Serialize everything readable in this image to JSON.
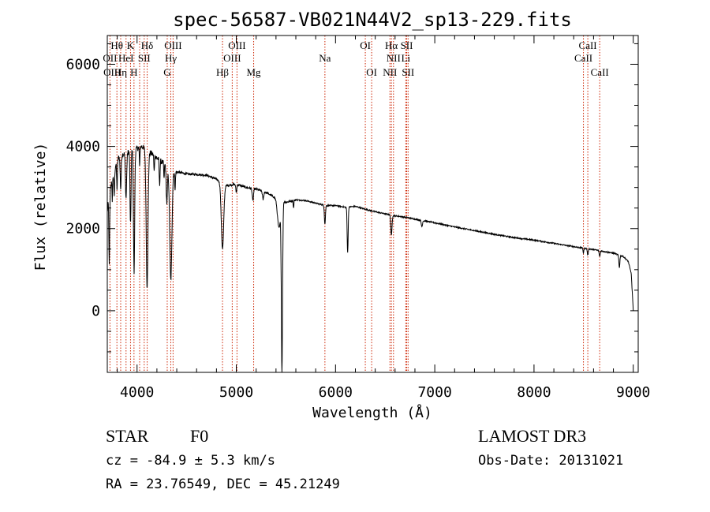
{
  "chart_data": {
    "type": "line",
    "title": "spec-56587-VB021N44V2_sp13-229.fits",
    "xlabel": "Wavelength (Å)",
    "ylabel": "Flux (relative)",
    "xlim": [
      3700,
      9050
    ],
    "ylim": [
      -1500,
      6700
    ],
    "x_ticks": [
      4000,
      5000,
      6000,
      7000,
      8000,
      9000
    ],
    "x_tick_labels": [
      "4000",
      "5000",
      "6000",
      "7000",
      "8000",
      "9000"
    ],
    "y_ticks": [
      0,
      2000,
      4000,
      6000
    ],
    "y_tick_labels": [
      "0",
      "2000",
      "4000",
      "6000"
    ],
    "series": [
      {
        "name": "spectrum",
        "color": "#000000",
        "continuum": [
          [
            3700,
            2400
          ],
          [
            3720,
            2900
          ],
          [
            3760,
            3300
          ],
          [
            3800,
            3700
          ],
          [
            3850,
            3800
          ],
          [
            3900,
            3850
          ],
          [
            3950,
            3900
          ],
          [
            4000,
            3950
          ],
          [
            4050,
            4000
          ],
          [
            4100,
            3900
          ],
          [
            4150,
            3820
          ],
          [
            4200,
            3720
          ],
          [
            4250,
            3620
          ],
          [
            4300,
            3520
          ],
          [
            4350,
            3420
          ],
          [
            4400,
            3380
          ],
          [
            4500,
            3330
          ],
          [
            4600,
            3320
          ],
          [
            4700,
            3300
          ],
          [
            4800,
            3200
          ],
          [
            4900,
            3050
          ],
          [
            5000,
            3080
          ],
          [
            5100,
            3000
          ],
          [
            5200,
            2960
          ],
          [
            5300,
            2880
          ],
          [
            5400,
            2740
          ],
          [
            5500,
            2640
          ],
          [
            5600,
            2700
          ],
          [
            5700,
            2680
          ],
          [
            5800,
            2620
          ],
          [
            5900,
            2560
          ],
          [
            6000,
            2560
          ],
          [
            6100,
            2520
          ],
          [
            6200,
            2540
          ],
          [
            6300,
            2470
          ],
          [
            6400,
            2410
          ],
          [
            6500,
            2360
          ],
          [
            6600,
            2310
          ],
          [
            6700,
            2280
          ],
          [
            6800,
            2230
          ],
          [
            7000,
            2140
          ],
          [
            7200,
            2040
          ],
          [
            7400,
            1950
          ],
          [
            7600,
            1860
          ],
          [
            7800,
            1780
          ],
          [
            8000,
            1720
          ],
          [
            8200,
            1640
          ],
          [
            8400,
            1560
          ],
          [
            8600,
            1490
          ],
          [
            8800,
            1400
          ],
          [
            8900,
            1320
          ],
          [
            8950,
            1200
          ],
          [
            8980,
            900
          ],
          [
            9000,
            0
          ]
        ],
        "absorption_lines": [
          [
            3720,
            1800,
            4
          ],
          [
            3750,
            500,
            3
          ],
          [
            3770,
            600,
            4
          ],
          [
            3798,
            700,
            4
          ],
          [
            3835,
            800,
            5
          ],
          [
            3889,
            1100,
            6
          ],
          [
            3934,
            1800,
            5
          ],
          [
            3970,
            3000,
            6
          ],
          [
            4026,
            500,
            3
          ],
          [
            4101,
            3300,
            9
          ],
          [
            4172,
            400,
            3
          ],
          [
            4227,
            600,
            4
          ],
          [
            4272,
            400,
            3
          ],
          [
            4300,
            900,
            6
          ],
          [
            4340,
            2700,
            11
          ],
          [
            4383,
            400,
            4
          ],
          [
            4861,
            1600,
            12
          ],
          [
            5000,
            200,
            5
          ],
          [
            5167,
            300,
            6
          ],
          [
            5270,
            200,
            6
          ],
          [
            5460,
            4100,
            6
          ],
          [
            5430,
            700,
            15
          ],
          [
            5577,
            200,
            3
          ],
          [
            5890,
            300,
            4
          ],
          [
            5896,
            300,
            4
          ],
          [
            6122,
            1100,
            5
          ],
          [
            6563,
            500,
            6
          ],
          [
            6870,
            150,
            6
          ],
          [
            8498,
            120,
            4
          ],
          [
            8542,
            150,
            5
          ],
          [
            8662,
            140,
            5
          ],
          [
            8860,
            300,
            5
          ]
        ]
      }
    ],
    "vertical_markers": {
      "color": "#cc2200",
      "style": "dotted",
      "wavelengths": [
        3727,
        3797,
        3835,
        3889,
        3934,
        3969,
        4026,
        4072,
        4102,
        4304,
        4340,
        4363,
        4861,
        4959,
        5007,
        5175,
        5893,
        6300,
        6364,
        6548,
        6563,
        6584,
        6708,
        6717,
        6731,
        8498,
        8542,
        8662
      ]
    },
    "line_labels": [
      {
        "text": "Hθ",
        "wave": 3797,
        "row": 1
      },
      {
        "text": "K",
        "wave": 3934,
        "row": 1
      },
      {
        "text": "Hδ",
        "wave": 4102,
        "row": 1
      },
      {
        "text": "OIII",
        "wave": 4363,
        "row": 1
      },
      {
        "text": "OIII",
        "wave": 5007,
        "row": 1
      },
      {
        "text": "OI",
        "wave": 6300,
        "row": 1
      },
      {
        "text": "Hα",
        "wave": 6563,
        "row": 1
      },
      {
        "text": "SII",
        "wave": 6717,
        "row": 1
      },
      {
        "text": "CaII",
        "wave": 8542,
        "row": 1
      },
      {
        "text": "OII",
        "wave": 3727,
        "row": 2
      },
      {
        "text": "HeI",
        "wave": 3889,
        "row": 2
      },
      {
        "text": "SII",
        "wave": 4072,
        "row": 2
      },
      {
        "text": "Hγ",
        "wave": 4340,
        "row": 2
      },
      {
        "text": "OIII",
        "wave": 4959,
        "row": 2
      },
      {
        "text": "Na",
        "wave": 5893,
        "row": 2
      },
      {
        "text": "NII",
        "wave": 6584,
        "row": 2
      },
      {
        "text": "Li",
        "wave": 6708,
        "row": 2
      },
      {
        "text": "CaII",
        "wave": 8498,
        "row": 2
      },
      {
        "text": "OIII",
        "wave": 3750,
        "row": 3
      },
      {
        "text": "Hη",
        "wave": 3835,
        "row": 3
      },
      {
        "text": "H",
        "wave": 3969,
        "row": 3
      },
      {
        "text": "G",
        "wave": 4304,
        "row": 3
      },
      {
        "text": "Hβ",
        "wave": 4861,
        "row": 3
      },
      {
        "text": "Mg",
        "wave": 5175,
        "row": 3
      },
      {
        "text": "OI",
        "wave": 6364,
        "row": 3
      },
      {
        "text": "NII",
        "wave": 6548,
        "row": 3
      },
      {
        "text": "SII",
        "wave": 6731,
        "row": 3
      },
      {
        "text": "CaII",
        "wave": 8662,
        "row": 3
      }
    ]
  },
  "footer": {
    "object_class": "STAR",
    "subclass": "F0",
    "survey": "LAMOST DR3",
    "redshift_text": "cz = -84.9 ± 5.3 km/s",
    "obs_date_text": "Obs-Date: 20131021",
    "coords_text": "RA =  23.76549, DEC =  45.21249"
  }
}
